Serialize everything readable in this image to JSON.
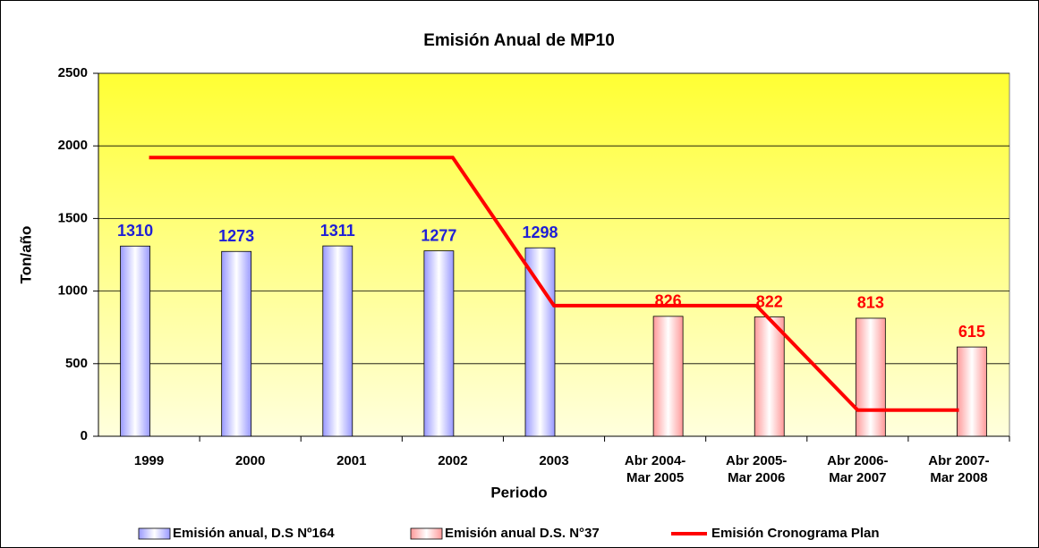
{
  "chart_data": {
    "type": "bar",
    "title": "Emisión Anual de MP10",
    "x_label": "Periodo",
    "y_label": "Ton/año",
    "categories": [
      "1999",
      "2000",
      "2001",
      "2002",
      "2003",
      "Abr 2004-\nMar 2005",
      "Abr 2005-\nMar 2006",
      "Abr 2006-\nMar 2007",
      "Abr 2007-\nMar 2008"
    ],
    "series": [
      {
        "name": "Emisión anual, D.S Nº164",
        "type": "bar",
        "color": "#9999ff",
        "label_color": "#1f1fd6",
        "values": [
          1310,
          1273,
          1311,
          1277,
          1298,
          null,
          null,
          null,
          null
        ]
      },
      {
        "name": "Emisión anual D.S. N°37",
        "type": "bar",
        "color": "#ff9999",
        "label_color": "#ff0000",
        "values": [
          null,
          null,
          null,
          null,
          null,
          826,
          822,
          813,
          615
        ]
      },
      {
        "name": "Emisión Cronograma Plan",
        "type": "line",
        "color": "#ff0000",
        "values": [
          1920,
          1920,
          1920,
          1920,
          900,
          900,
          900,
          180,
          180
        ]
      }
    ],
    "ylim": [
      0,
      2500
    ],
    "yticks": [
      0,
      500,
      1000,
      1500,
      2000,
      2500
    ],
    "grid": true,
    "legend": "bottom"
  }
}
